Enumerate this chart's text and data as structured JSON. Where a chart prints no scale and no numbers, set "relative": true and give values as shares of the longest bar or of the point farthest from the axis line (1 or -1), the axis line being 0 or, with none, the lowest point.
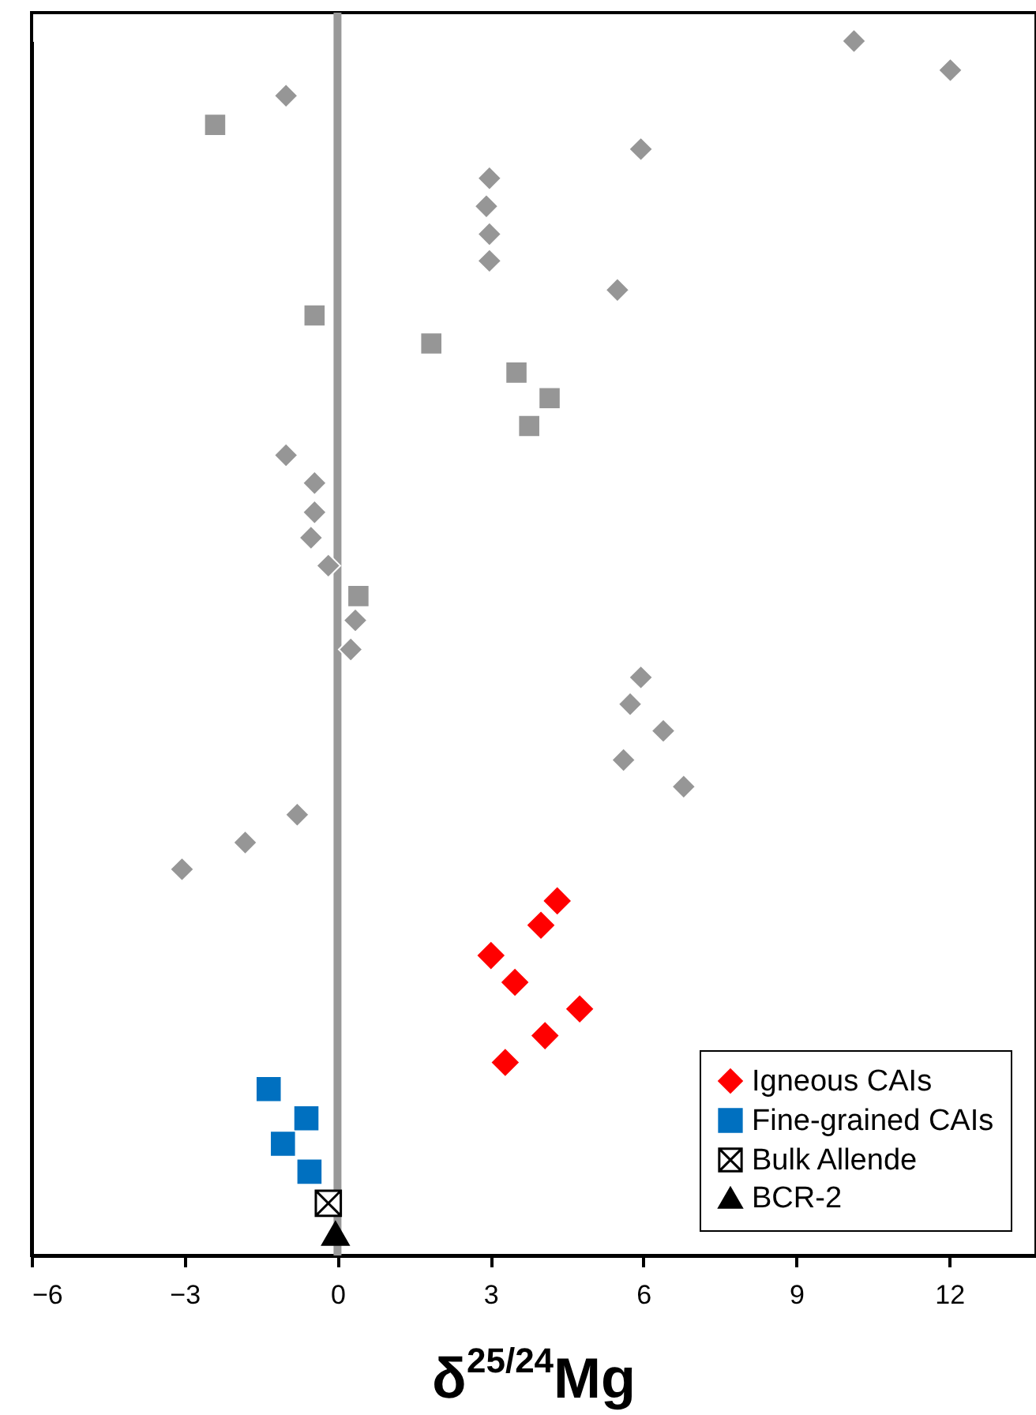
{
  "chart_data": {
    "type": "scatter",
    "xlabel": "δ$^{25/24}$Mg",
    "relative": true,
    "xlim": [
      -6,
      13.7
    ],
    "xticks": [
      -6,
      -3,
      0,
      3,
      6,
      9,
      12
    ],
    "grid": false,
    "legend": "bottom right",
    "ref_lines": [
      {
        "axis": "x",
        "value": 0,
        "color": "#999999"
      }
    ],
    "series": [
      {
        "color": "#969696",
        "marker": "diamond",
        "x": [
          10.13,
          12.02,
          -1.01,
          5.95,
          2.98,
          2.92,
          2.98,
          2.98,
          5.49,
          -1.01,
          -0.45,
          -0.45,
          -0.52,
          -0.18,
          0.35,
          0.26,
          5.95,
          5.74,
          6.39,
          5.61,
          6.79,
          -0.79,
          -1.81,
          -3.05
        ],
        "values": [
          1.0,
          0.976,
          0.955,
          0.911,
          0.887,
          0.864,
          0.841,
          0.819,
          0.795,
          0.659,
          0.636,
          0.612,
          0.591,
          0.568,
          0.523,
          0.499,
          0.476,
          0.454,
          0.432,
          0.408,
          0.386,
          0.363,
          0.34,
          0.318
        ]
      },
      {
        "color": "#969696",
        "marker": "square",
        "x": [
          -2.4,
          -0.45,
          1.84,
          3.51,
          4.16,
          3.76,
          0.41
        ],
        "values": [
          0.931,
          0.774,
          0.751,
          0.727,
          0.706,
          0.683,
          0.543
        ]
      },
      {
        "name": "Igneous CAIs",
        "color": "#ff0000",
        "marker": "diamond",
        "x": [
          4.31,
          3.99,
          3.01,
          3.48,
          4.75,
          4.07,
          3.29
        ],
        "values": [
          0.292,
          0.272,
          0.247,
          0.225,
          0.203,
          0.181,
          0.159
        ]
      },
      {
        "name": "Fine-grained CAIs",
        "color": "#0070c0",
        "marker": "square",
        "x": [
          -1.35,
          -0.61,
          -1.07,
          -0.55
        ],
        "values": [
          0.137,
          0.113,
          0.092,
          0.069
        ]
      },
      {
        "name": "Bulk Allende",
        "color": "#000000",
        "marker": "cross",
        "x": [
          -0.18
        ],
        "values": [
          0.043
        ]
      },
      {
        "name": "BCR-2",
        "color": "#000000",
        "marker": "triangle",
        "x": [
          -0.04
        ],
        "values": [
          0.018
        ]
      }
    ]
  }
}
